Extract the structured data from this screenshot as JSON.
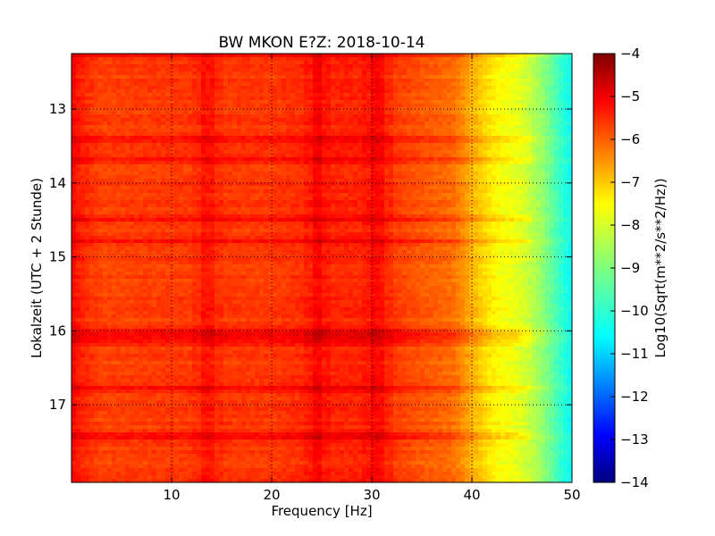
{
  "chart_data": {
    "type": "heatmap",
    "title": "BW MKON E?Z: 2018-10-14",
    "xlabel": "Frequency [Hz]",
    "ylabel": "Lokalzeit (UTC + 2 Stunde)",
    "xlim": [
      0,
      50
    ],
    "ylim": [
      12.25,
      18.05
    ],
    "y_inverted": true,
    "x_ticks": [
      "10",
      "20",
      "30",
      "40",
      "50"
    ],
    "y_ticks": [
      "13",
      "14",
      "15",
      "16",
      "17"
    ],
    "x_tick_values": [
      10,
      20,
      30,
      40,
      50
    ],
    "y_tick_values": [
      13,
      14,
      15,
      16,
      17
    ],
    "grid": true,
    "colorbar": {
      "label": "Log10(Sqrt(m**2/s**2/Hz))",
      "range": [
        -14,
        -4
      ],
      "colormap": "jet",
      "tick_values": [
        -4,
        -5,
        -6,
        -7,
        -8,
        -9,
        -10,
        -11,
        -12,
        -13,
        -14
      ],
      "ticks": [
        "−4",
        "−5",
        "−6",
        "−7",
        "−8",
        "−9",
        "−10",
        "−11",
        "−12",
        "−13",
        "−14"
      ]
    },
    "frequency_profile": {
      "frequency_hz": [
        0,
        1,
        3,
        10,
        20,
        25,
        30,
        35,
        38,
        39,
        40,
        41,
        42,
        43,
        44,
        45,
        46,
        47,
        48,
        49,
        50
      ],
      "log10_amplitude": [
        -5.3,
        -5.6,
        -5.9,
        -5.8,
        -5.8,
        -5.6,
        -5.6,
        -6.1,
        -6.3,
        -6.6,
        -7.0,
        -7.3,
        -7.6,
        -7.8,
        -7.9,
        -8.1,
        -8.4,
        -8.8,
        -9.3,
        -9.8,
        -10.2
      ]
    },
    "high_energy_times_hour": [
      12.25,
      13.42,
      13.68,
      14.5,
      14.8,
      16.02,
      16.12,
      16.78,
      17.42
    ],
    "high_energy_frequencies_hz": [
      13.5,
      24.5,
      30.5
    ]
  }
}
